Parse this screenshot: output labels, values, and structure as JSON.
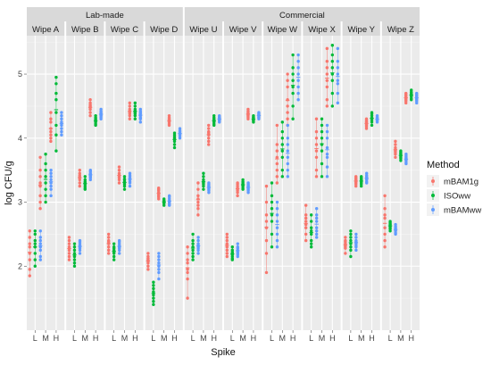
{
  "chart_data": {
    "type": "scatter",
    "xlabel": "Spike",
    "ylabel": "log CFU/g",
    "ylim": [
      1.0,
      5.6
    ],
    "y_ticks": [
      "2",
      "3",
      "4",
      "5"
    ],
    "x_ticks": [
      "L",
      "M",
      "H"
    ],
    "group_strips": [
      {
        "label": "Lab-made",
        "panels": [
          "Wipe A",
          "Wipe B",
          "Wipe C",
          "Wipe D"
        ]
      },
      {
        "label": "Commercial",
        "panels": [
          "Wipe U",
          "Wipe V",
          "Wipe W",
          "Wipe X",
          "Wipe Y",
          "Wipe Z"
        ]
      }
    ],
    "legend": {
      "title": "Method",
      "position": "right",
      "items": [
        {
          "label": "mBAM1g",
          "color": "#F8766D"
        },
        {
          "label": "ISOww",
          "color": "#00BA38"
        },
        {
          "label": "mBAMww",
          "color": "#619CFF"
        }
      ]
    },
    "series": [
      "mBAM1g",
      "ISOww",
      "mBAMww"
    ],
    "panels": [
      {
        "name": "Wipe A",
        "points": {
          "mBAM1g": [
            [
              2.55,
              2.35,
              2.3,
              2.2,
              2.1,
              1.95,
              1.85,
              2.45
            ],
            [
              3.3,
              3.1,
              3.0,
              3.5,
              3.7,
              2.9,
              3.25,
              3.4
            ],
            [
              4.15,
              4.05,
              4.25,
              4.4,
              3.95,
              4.1,
              4.3,
              4.0
            ]
          ],
          "ISOww": [
            [
              2.35,
              2.2,
              2.5,
              2.0,
              2.4,
              2.3,
              2.1,
              2.55
            ],
            [
              3.4,
              3.2,
              3.1,
              3.6,
              3.5,
              3.3,
              3.0,
              3.75
            ],
            [
              4.95,
              4.85,
              4.7,
              4.4,
              4.2,
              4.05,
              3.8,
              4.6
            ]
          ],
          "mBAMww": [
            [
              2.4,
              2.3,
              2.25,
              2.1,
              2.55,
              2.35,
              2.15,
              2.45
            ],
            [
              3.35,
              3.25,
              3.1,
              3.5,
              3.4,
              3.2,
              3.3,
              3.45
            ],
            [
              4.35,
              4.25,
              4.15,
              4.4,
              4.05,
              4.2,
              4.3,
              4.1
            ]
          ]
        }
      },
      {
        "name": "Wipe B",
        "points": {
          "mBAM1g": [
            [
              2.45,
              2.3,
              2.2,
              2.1,
              2.35,
              2.4,
              2.25,
              2.15
            ],
            [
              3.45,
              3.35,
              3.3,
              3.4,
              3.5,
              3.25,
              3.38,
              3.42
            ],
            [
              4.55,
              4.5,
              4.45,
              4.6,
              4.4,
              4.52,
              4.48,
              4.35
            ]
          ],
          "ISOww": [
            [
              2.2,
              2.1,
              2.0,
              2.3,
              2.25,
              2.15,
              2.05,
              2.35
            ],
            [
              3.35,
              3.25,
              3.2,
              3.3,
              3.28,
              3.4,
              3.22,
              3.32
            ],
            [
              4.3,
              4.25,
              4.2,
              4.35,
              4.28,
              4.22,
              4.32,
              4.26
            ]
          ],
          "mBAMww": [
            [
              2.35,
              2.25,
              2.3,
              2.2,
              2.4,
              2.28,
              2.32,
              2.38
            ],
            [
              3.45,
              3.4,
              3.5,
              3.35,
              3.42,
              3.48,
              3.38,
              3.44
            ],
            [
              4.4,
              4.35,
              4.45,
              4.3,
              4.38,
              4.42,
              4.36,
              4.33
            ]
          ]
        }
      },
      {
        "name": "Wipe C",
        "points": {
          "mBAM1g": [
            [
              2.5,
              2.4,
              2.35,
              2.3,
              2.2,
              2.45,
              2.25,
              2.38
            ],
            [
              3.55,
              3.45,
              3.4,
              3.3,
              3.35,
              3.5,
              3.42,
              3.38
            ],
            [
              4.55,
              4.45,
              4.4,
              4.35,
              4.3,
              4.5,
              4.42,
              4.38
            ]
          ],
          "ISOww": [
            [
              2.3,
              2.2,
              2.1,
              2.25,
              2.35,
              2.15,
              2.28,
              2.22
            ],
            [
              3.4,
              3.3,
              3.25,
              3.35,
              3.2,
              3.32,
              3.28,
              3.36
            ],
            [
              4.55,
              4.45,
              4.35,
              4.3,
              4.4,
              4.5,
              4.38,
              4.42
            ]
          ],
          "mBAMww": [
            [
              2.4,
              2.3,
              2.2,
              2.35,
              2.25,
              2.38,
              2.32,
              2.28
            ],
            [
              3.45,
              3.35,
              3.3,
              3.4,
              3.25,
              3.42,
              3.38,
              3.32
            ],
            [
              4.45,
              4.35,
              4.3,
              4.4,
              4.25,
              4.38,
              4.42,
              4.32
            ]
          ]
        }
      },
      {
        "name": "Wipe D",
        "points": {
          "mBAM1g": [
            [
              2.2,
              2.1,
              2.05,
              1.95,
              2.15,
              2.0,
              2.08,
              2.12
            ],
            [
              3.2,
              3.15,
              3.1,
              3.05,
              3.18,
              3.12,
              3.22,
              3.08
            ],
            [
              4.3,
              4.25,
              4.2,
              4.35,
              4.28,
              4.22,
              4.32,
              4.26
            ]
          ],
          "ISOww": [
            [
              1.7,
              1.6,
              1.5,
              1.4,
              1.65,
              1.55,
              1.45,
              1.75
            ],
            [
              3.0,
              2.98,
              3.02,
              3.05,
              2.95,
              3.01,
              2.99,
              3.03
            ],
            [
              4.05,
              4.0,
              3.95,
              3.9,
              3.85,
              4.02,
              3.98,
              4.08
            ]
          ],
          "mBAMww": [
            [
              2.2,
              2.1,
              2.0,
              1.9,
              1.8,
              2.15,
              2.05,
              1.95
            ],
            [
              3.0,
              2.95,
              3.05,
              3.1,
              2.98,
              3.02,
              3.08,
              2.96
            ],
            [
              4.15,
              4.1,
              4.05,
              4.0,
              4.12,
              4.08,
              4.02,
              4.06
            ]
          ]
        }
      },
      {
        "name": "Wipe U",
        "points": {
          "mBAM1g": [
            [
              2.3,
              2.1,
              1.95,
              1.8,
              1.5,
              2.2,
              2.05,
              1.9
            ],
            [
              3.3,
              3.1,
              3.0,
              2.9,
              2.8,
              3.2,
              3.05,
              2.95
            ],
            [
              4.1,
              4.0,
              3.95,
              4.2,
              4.05,
              3.9,
              4.15,
              4.08
            ]
          ],
          "ISOww": [
            [
              2.5,
              2.35,
              2.25,
              2.2,
              2.1,
              2.4,
              2.3,
              2.15
            ],
            [
              3.4,
              3.3,
              3.25,
              3.2,
              3.45,
              3.35,
              3.28,
              3.32
            ],
            [
              4.35,
              4.3,
              4.25,
              4.2,
              4.32,
              4.28,
              4.22,
              4.26
            ]
          ],
          "mBAMww": [
            [
              2.45,
              2.35,
              2.3,
              2.25,
              2.2,
              2.4,
              2.28,
              2.32
            ],
            [
              3.3,
              3.25,
              3.2,
              3.15,
              3.28,
              3.22,
              3.18,
              3.26
            ],
            [
              4.35,
              4.3,
              4.28,
              4.25,
              4.32,
              4.27,
              4.33,
              4.29
            ]
          ]
        }
      },
      {
        "name": "Wipe V",
        "points": {
          "mBAM1g": [
            [
              2.5,
              2.4,
              2.3,
              2.2,
              2.15,
              2.35,
              2.25,
              2.45
            ],
            [
              3.3,
              3.25,
              3.2,
              3.15,
              3.1,
              3.28,
              3.22,
              3.18
            ],
            [
              4.45,
              4.4,
              4.35,
              4.3,
              4.42,
              4.38,
              4.33,
              4.37
            ]
          ],
          "ISOww": [
            [
              2.3,
              2.2,
              2.15,
              2.1,
              2.25,
              2.18,
              2.22,
              2.12
            ],
            [
              3.35,
              3.3,
              3.25,
              3.2,
              3.32,
              3.28,
              3.22,
              3.26
            ],
            [
              4.35,
              4.3,
              4.28,
              4.25,
              4.32,
              4.27,
              4.33,
              4.29
            ]
          ],
          "mBAMww": [
            [
              2.35,
              2.25,
              2.2,
              2.15,
              2.3,
              2.22,
              2.28,
              2.18
            ],
            [
              3.3,
              3.25,
              3.2,
              3.15,
              3.28,
              3.22,
              3.18,
              3.26
            ],
            [
              4.4,
              4.35,
              4.3,
              4.38,
              4.33,
              4.36,
              4.32,
              4.37
            ]
          ]
        }
      },
      {
        "name": "Wipe W",
        "points": {
          "mBAM1g": [
            [
              3.25,
              3.0,
              2.8,
              2.6,
              2.4,
              2.2,
              1.9,
              2.7
            ],
            [
              4.2,
              3.9,
              3.7,
              3.5,
              3.4,
              3.3,
              3.6,
              3.8
            ],
            [
              5.0,
              4.8,
              4.6,
              4.4,
              4.2,
              4.3,
              4.9,
              4.5
            ]
          ],
          "ISOww": [
            [
              3.3,
              3.1,
              2.9,
              2.7,
              2.5,
              2.3,
              2.8,
              3.0
            ],
            [
              4.25,
              4.1,
              3.9,
              3.7,
              3.5,
              3.4,
              3.8,
              4.0
            ],
            [
              5.3,
              5.1,
              4.9,
              4.7,
              4.5,
              4.3,
              4.8,
              5.0
            ]
          ],
          "mBAMww": [
            [
              3.0,
              2.9,
              2.8,
              2.7,
              2.6,
              2.5,
              2.4,
              2.3
            ],
            [
              4.2,
              4.0,
              3.9,
              3.8,
              3.7,
              3.6,
              3.5,
              3.4
            ],
            [
              5.3,
              5.2,
              5.1,
              5.0,
              4.9,
              4.8,
              4.7,
              4.6
            ]
          ]
        }
      },
      {
        "name": "Wipe X",
        "points": {
          "mBAM1g": [
            [
              2.95,
              2.8,
              2.7,
              2.6,
              2.5,
              2.4,
              2.75,
              2.65
            ],
            [
              4.3,
              4.1,
              3.9,
              3.7,
              3.5,
              3.4,
              3.8,
              4.0
            ],
            [
              5.4,
              5.2,
              5.0,
              4.8,
              4.6,
              4.5,
              4.9,
              5.1
            ]
          ],
          "ISOww": [
            [
              2.8,
              2.6,
              2.5,
              2.4,
              2.35,
              2.3,
              2.55,
              2.7
            ],
            [
              4.3,
              4.1,
              4.0,
              3.8,
              3.6,
              3.4,
              3.9,
              4.2
            ],
            [
              5.45,
              5.3,
              5.1,
              4.9,
              4.7,
              4.5,
              5.0,
              5.2
            ]
          ],
          "mBAMww": [
            [
              2.9,
              2.8,
              2.7,
              2.6,
              2.5,
              2.45,
              2.55,
              2.75
            ],
            [
              4.2,
              4.0,
              3.85,
              3.7,
              3.55,
              3.4,
              3.75,
              4.1
            ],
            [
              5.4,
              5.2,
              5.0,
              4.85,
              4.7,
              4.55,
              4.9,
              5.1
            ]
          ]
        }
      },
      {
        "name": "Wipe Y",
        "points": {
          "mBAM1g": [
            [
              2.45,
              2.4,
              2.35,
              2.3,
              2.2,
              2.38,
              2.32,
              2.28
            ],
            [
              3.4,
              3.35,
              3.3,
              3.25,
              3.38,
              3.32,
              3.28,
              3.36
            ],
            [
              4.3,
              4.25,
              4.2,
              4.15,
              4.28,
              4.22,
              4.18,
              4.26
            ]
          ],
          "ISOww": [
            [
              2.55,
              2.45,
              2.35,
              2.25,
              2.15,
              2.4,
              2.3,
              2.5
            ],
            [
              3.4,
              3.35,
              3.3,
              3.25,
              3.38,
              3.32,
              3.28,
              3.36
            ],
            [
              4.4,
              4.35,
              4.3,
              4.25,
              4.38,
              4.32,
              4.28,
              4.2
            ]
          ],
          "mBAMww": [
            [
              2.5,
              2.4,
              2.35,
              2.3,
              2.25,
              2.45,
              2.38,
              2.32
            ],
            [
              3.45,
              3.4,
              3.35,
              3.3,
              3.42,
              3.38,
              3.32,
              3.36
            ],
            [
              4.35,
              4.3,
              4.28,
              4.25,
              4.32,
              4.27,
              4.33,
              4.29
            ]
          ]
        }
      },
      {
        "name": "Wipe Z",
        "points": {
          "mBAM1g": [
            [
              3.1,
              2.9,
              2.75,
              2.6,
              2.5,
              2.4,
              2.3,
              2.8
            ],
            [
              3.95,
              3.85,
              3.8,
              3.75,
              3.7,
              3.9,
              3.82,
              3.78
            ],
            [
              4.7,
              4.65,
              4.6,
              4.55,
              4.68,
              4.62,
              4.58,
              4.66
            ]
          ],
          "ISOww": [
            [
              2.7,
              2.65,
              2.6,
              2.55,
              2.68,
              2.62,
              2.58,
              2.66
            ],
            [
              3.8,
              3.75,
              3.7,
              3.65,
              3.78,
              3.72,
              3.68,
              3.76
            ],
            [
              4.75,
              4.7,
              4.65,
              4.6,
              4.72,
              4.68,
              4.62,
              4.66
            ]
          ],
          "mBAMww": [
            [
              2.65,
              2.6,
              2.55,
              2.5,
              2.62,
              2.58,
              2.52,
              2.56
            ],
            [
              3.75,
              3.7,
              3.65,
              3.6,
              3.72,
              3.68,
              3.62,
              3.66
            ],
            [
              4.7,
              4.65,
              4.6,
              4.55,
              4.68,
              4.62,
              4.58,
              4.66
            ]
          ]
        }
      }
    ]
  }
}
